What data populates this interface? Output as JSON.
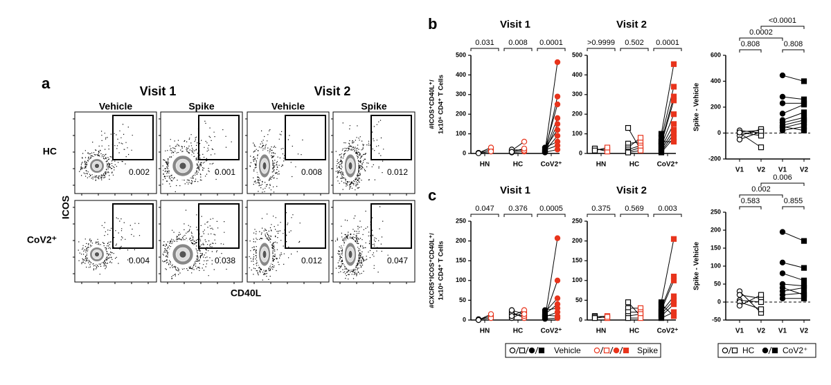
{
  "panel_labels": [
    "a",
    "b",
    "c"
  ],
  "flow": {
    "visits": [
      "Visit 1",
      "Visit 2"
    ],
    "conditions": [
      "Vehicle",
      "Spike",
      "Vehicle",
      "Spike"
    ],
    "rows": [
      "HC",
      "CoV2⁺"
    ],
    "gates": [
      [
        0.002,
        0.001,
        0.008,
        0.012
      ],
      [
        0.004,
        0.038,
        0.012,
        0.047
      ]
    ],
    "x_label": "CD40L",
    "y_label": "ICOS"
  },
  "legend": {
    "treatments": [
      {
        "name": "Vehicle",
        "color": "#000000"
      },
      {
        "name": "Spike",
        "color": "#e8341c"
      }
    ],
    "groups": [
      "HC",
      "CoV2⁺"
    ]
  },
  "chart_data": [
    {
      "type": "paired",
      "title": "Visit 1",
      "y_label": [
        "#ICOS⁺CD40L⁺/",
        "1x10⁶ CD4⁺ T Cells"
      ],
      "categories": [
        "HN",
        "HC",
        "CoV2⁺"
      ],
      "marker": "circle",
      "filled": [
        false,
        false,
        true
      ],
      "p_values": [
        "0.031",
        "0.008",
        "0.0001"
      ],
      "ylim": [
        0,
        500
      ],
      "yticks": [
        0,
        100,
        200,
        300,
        400,
        500
      ],
      "vehicle": [
        [
          2,
          3,
          1
        ],
        [
          5,
          10,
          15,
          20,
          8
        ],
        [
          10,
          5,
          20,
          15,
          8,
          25,
          12,
          30,
          18,
          6
        ]
      ],
      "spike": [
        [
          20,
          30,
          10
        ],
        [
          10,
          20,
          60,
          15,
          25
        ],
        [
          465,
          290,
          250,
          180,
          150,
          120,
          90,
          60,
          40,
          20
        ]
      ]
    },
    {
      "type": "paired",
      "title": "Visit 2",
      "categories": [
        "HN",
        "HC",
        "CoV2⁺"
      ],
      "marker": "square",
      "filled": [
        false,
        false,
        true
      ],
      "p_values": [
        ">0.9999",
        "0.502",
        "0.0001"
      ],
      "ylim": [
        0,
        500
      ],
      "yticks": [
        0,
        100,
        200,
        300,
        400,
        500
      ],
      "vehicle": [
        [
          20,
          25,
          15
        ],
        [
          130,
          50,
          30,
          20,
          10,
          5
        ],
        [
          100,
          80,
          60,
          50,
          40,
          30,
          20,
          10,
          5,
          60
        ]
      ],
      "spike": [
        [
          20,
          10,
          30
        ],
        [
          20,
          60,
          80,
          40,
          30,
          15
        ],
        [
          455,
          340,
          290,
          270,
          200,
          150,
          120,
          100,
          80,
          60
        ]
      ]
    },
    {
      "type": "difference",
      "y_label": "Spike - Vehicle",
      "categories": [
        "V1",
        "V2",
        "V1",
        "V2"
      ],
      "markers": [
        "circle",
        "square",
        "circle",
        "square"
      ],
      "filled": [
        false,
        false,
        true,
        true
      ],
      "p_values": [
        "0.808",
        "0.808",
        "0.0002",
        "<0.0001"
      ],
      "ylim": [
        -200,
        600
      ],
      "yticks": [
        -200,
        0,
        200,
        400,
        600
      ],
      "values": [
        [
          0,
          10,
          -20,
          20,
          -50,
          5
        ],
        [
          -110,
          20,
          30,
          0,
          10,
          -20
        ],
        [
          445,
          280,
          230,
          150,
          100,
          80,
          60,
          40,
          20,
          50
        ],
        [
          400,
          260,
          230,
          220,
          160,
          120,
          100,
          80,
          50,
          20
        ]
      ]
    },
    {
      "type": "paired",
      "title": "Visit 1",
      "y_label": [
        "#CXCR5⁺ICOS⁺CD40L⁺/",
        "1x10⁶ CD4⁺ T Cells"
      ],
      "categories": [
        "HN",
        "HC",
        "CoV2⁺"
      ],
      "marker": "circle",
      "filled": [
        false,
        false,
        true
      ],
      "p_values": [
        "0.047",
        "0.376",
        "0.0005"
      ],
      "ylim": [
        0,
        250
      ],
      "yticks": [
        0,
        50,
        100,
        150,
        200,
        250
      ],
      "vehicle": [
        [
          1,
          2,
          0
        ],
        [
          20,
          15,
          5,
          10,
          25
        ],
        [
          5,
          10,
          20,
          15,
          25,
          8,
          12,
          3
        ]
      ],
      "spike": [
        [
          10,
          5,
          15
        ],
        [
          5,
          10,
          20,
          25,
          15
        ],
        [
          207,
          100,
          55,
          40,
          30,
          20,
          10,
          5
        ]
      ]
    },
    {
      "type": "paired",
      "title": "Visit 2",
      "categories": [
        "HN",
        "HC",
        "CoV2⁺"
      ],
      "marker": "square",
      "filled": [
        false,
        false,
        true
      ],
      "p_values": [
        "0.375",
        "0.569",
        "0.003"
      ],
      "ylim": [
        0,
        250
      ],
      "yticks": [
        0,
        50,
        100,
        150,
        200,
        250
      ],
      "vehicle": [
        [
          10,
          8,
          5
        ],
        [
          45,
          30,
          20,
          10,
          5
        ],
        [
          45,
          30,
          25,
          20,
          15,
          10,
          5,
          40
        ]
      ],
      "spike": [
        [
          5,
          10,
          8
        ],
        [
          10,
          30,
          20,
          15,
          5
        ],
        [
          205,
          110,
          100,
          60,
          50,
          40,
          20,
          10
        ]
      ]
    },
    {
      "type": "difference",
      "y_label": "Spike - Vehicle",
      "categories": [
        "V1",
        "V2",
        "V1",
        "V2"
      ],
      "markers": [
        "circle",
        "square",
        "circle",
        "square"
      ],
      "filled": [
        false,
        false,
        true,
        true
      ],
      "p_values": [
        "0.583",
        "0.855",
        "0.002",
        "0.006"
      ],
      "ylim": [
        -50,
        250
      ],
      "yticks": [
        -50,
        0,
        50,
        100,
        150,
        200,
        250
      ],
      "values": [
        [
          30,
          20,
          5,
          0,
          -10
        ],
        [
          -30,
          10,
          0,
          -20,
          20
        ],
        [
          195,
          110,
          80,
          50,
          30,
          20,
          10,
          40
        ],
        [
          170,
          95,
          60,
          45,
          40,
          25,
          10,
          20
        ]
      ]
    }
  ]
}
